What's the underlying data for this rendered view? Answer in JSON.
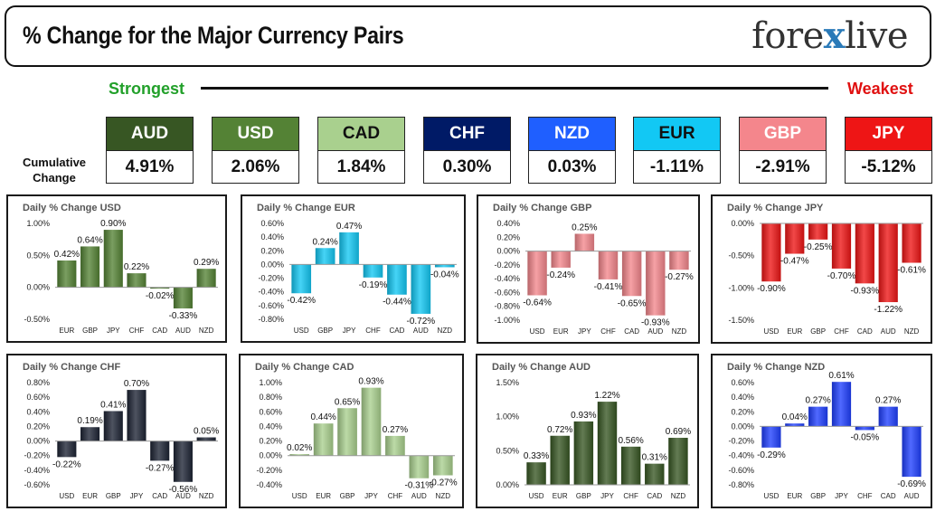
{
  "header": {
    "title": "% Change for the Major Currency Pairs",
    "logo_pre": "fore",
    "logo_x": "x",
    "logo_post": "live"
  },
  "scale": {
    "strongest": "Strongest",
    "weakest": "Weakest"
  },
  "cumulative": {
    "label_line1": "Cumulative",
    "label_line2": "Change",
    "items": [
      {
        "code": "AUD",
        "value": "4.91%",
        "bg": "#375623",
        "fg": "#ffffff"
      },
      {
        "code": "USD",
        "value": "2.06%",
        "bg": "#548235",
        "fg": "#ffffff"
      },
      {
        "code": "CAD",
        "value": "1.84%",
        "bg": "#a9d08e",
        "fg": "#111111"
      },
      {
        "code": "CHF",
        "value": "0.30%",
        "bg": "#001a66",
        "fg": "#ffffff"
      },
      {
        "code": "NZD",
        "value": "0.03%",
        "bg": "#1f5fff",
        "fg": "#ffffff"
      },
      {
        "code": "EUR",
        "value": "-1.11%",
        "bg": "#12c8f4",
        "fg": "#111111"
      },
      {
        "code": "GBP",
        "value": "-2.91%",
        "bg": "#f4868c",
        "fg": "#ffffff"
      },
      {
        "code": "JPY",
        "value": "-5.12%",
        "bg": "#ee1515",
        "fg": "#ffffff"
      }
    ]
  },
  "chart_data": [
    {
      "type": "bar",
      "title": "Daily % Change USD",
      "categories": [
        "EUR",
        "GBP",
        "JPY",
        "CHF",
        "CAD",
        "AUD",
        "NZD"
      ],
      "values": [
        0.42,
        0.64,
        0.9,
        0.22,
        -0.02,
        -0.33,
        0.29
      ],
      "labels": [
        "0.42%",
        "0.64%",
        "0.90%",
        "0.22%",
        "-0.02%",
        "-0.33%",
        "0.29%"
      ],
      "ylim": [
        -0.5,
        1.0
      ],
      "ticks": [
        1.0,
        0.5,
        0.0,
        -0.5
      ],
      "tick_labels": [
        "1.00%",
        "0.50%",
        "0.00%",
        "-0.50%"
      ],
      "color": "#548235"
    },
    {
      "type": "bar",
      "title": "Daily % Change EUR",
      "categories": [
        "USD",
        "GBP",
        "JPY",
        "CHF",
        "CAD",
        "AUD",
        "NZD"
      ],
      "values": [
        -0.42,
        0.24,
        0.47,
        -0.19,
        -0.44,
        -0.72,
        -0.04
      ],
      "labels": [
        "-0.42%",
        "0.24%",
        "0.47%",
        "-0.19%",
        "-0.44%",
        "-0.72%",
        "-0.04%"
      ],
      "ylim": [
        -0.8,
        0.6
      ],
      "ticks": [
        0.6,
        0.4,
        0.2,
        0.0,
        -0.2,
        -0.4,
        -0.6,
        -0.8
      ],
      "tick_labels": [
        "0.60%",
        "0.40%",
        "0.20%",
        "0.00%",
        "-0.20%",
        "-0.40%",
        "-0.60%",
        "-0.80%"
      ],
      "color": "#12c8f4"
    },
    {
      "type": "bar",
      "title": "Daily % Change GBP",
      "categories": [
        "USD",
        "EUR",
        "JPY",
        "CHF",
        "CAD",
        "AUD",
        "NZD"
      ],
      "values": [
        -0.64,
        -0.24,
        0.25,
        -0.41,
        -0.65,
        -0.93,
        -0.27
      ],
      "labels": [
        "-0.64%",
        "-0.24%",
        "0.25%",
        "-0.41%",
        "-0.65%",
        "-0.93%",
        "-0.27%"
      ],
      "ylim": [
        -1.0,
        0.4
      ],
      "ticks": [
        0.4,
        0.2,
        0.0,
        -0.2,
        -0.4,
        -0.6,
        -0.8,
        -1.0
      ],
      "tick_labels": [
        "0.40%",
        "0.20%",
        "0.00%",
        "-0.20%",
        "-0.40%",
        "-0.60%",
        "-0.80%",
        "-1.00%"
      ],
      "color": "#f4868c"
    },
    {
      "type": "bar",
      "title": "Daily % Change JPY",
      "categories": [
        "USD",
        "EUR",
        "GBP",
        "CHF",
        "CAD",
        "AUD",
        "NZD"
      ],
      "values": [
        -0.9,
        -0.47,
        -0.25,
        -0.7,
        -0.93,
        -1.22,
        -0.61
      ],
      "labels": [
        "-0.90%",
        "-0.47%",
        "-0.25%",
        "-0.70%",
        "-0.93%",
        "-1.22%",
        "-0.61%"
      ],
      "ylim": [
        -1.5,
        0.0
      ],
      "ticks": [
        0.0,
        -0.5,
        -1.0,
        -1.5
      ],
      "tick_labels": [
        "0.00%",
        "-0.50%",
        "-1.00%",
        "-1.50%"
      ],
      "color": "#ee1515"
    },
    {
      "type": "bar",
      "title": "Daily % Change CHF",
      "categories": [
        "USD",
        "EUR",
        "GBP",
        "JPY",
        "CAD",
        "AUD",
        "NZD"
      ],
      "values": [
        -0.22,
        0.19,
        0.41,
        0.7,
        -0.27,
        -0.56,
        0.05
      ],
      "labels": [
        "-0.22%",
        "0.19%",
        "0.41%",
        "0.70%",
        "-0.27%",
        "-0.56%",
        "0.05%"
      ],
      "ylim": [
        -0.6,
        0.8
      ],
      "ticks": [
        0.8,
        0.6,
        0.4,
        0.2,
        0.0,
        -0.2,
        -0.4,
        -0.6
      ],
      "tick_labels": [
        "0.80%",
        "0.60%",
        "0.40%",
        "0.20%",
        "0.00%",
        "-0.20%",
        "-0.40%",
        "-0.60%"
      ],
      "color": "#1c2333"
    },
    {
      "type": "bar",
      "title": "Daily % Change CAD",
      "categories": [
        "USD",
        "EUR",
        "GBP",
        "JPY",
        "CHF",
        "AUD",
        "NZD"
      ],
      "values": [
        0.02,
        0.44,
        0.65,
        0.93,
        0.27,
        -0.31,
        -0.27
      ],
      "labels": [
        "0.02%",
        "0.44%",
        "0.65%",
        "0.93%",
        "0.27%",
        "-0.31%",
        "-0.27%"
      ],
      "ylim": [
        -0.4,
        1.0
      ],
      "ticks": [
        1.0,
        0.8,
        0.6,
        0.4,
        0.2,
        0.0,
        -0.2,
        -0.4
      ],
      "tick_labels": [
        "1.00%",
        "0.80%",
        "0.60%",
        "0.40%",
        "0.20%",
        "0.00%",
        "-0.20%",
        "-0.40%"
      ],
      "color": "#a9d08e"
    },
    {
      "type": "bar",
      "title": "Daily % Change AUD",
      "categories": [
        "USD",
        "EUR",
        "GBP",
        "JPY",
        "CHF",
        "CAD",
        "NZD"
      ],
      "values": [
        0.33,
        0.72,
        0.93,
        1.22,
        0.56,
        0.31,
        0.69
      ],
      "labels": [
        "0.33%",
        "0.72%",
        "0.93%",
        "1.22%",
        "0.56%",
        "0.31%",
        "0.69%"
      ],
      "ylim": [
        0.0,
        1.5
      ],
      "ticks": [
        1.5,
        1.0,
        0.5,
        0.0
      ],
      "tick_labels": [
        "1.50%",
        "1.00%",
        "0.50%",
        "0.00%"
      ],
      "color": "#375623"
    },
    {
      "type": "bar",
      "title": "Daily % Change NZD",
      "categories": [
        "USD",
        "EUR",
        "GBP",
        "JPY",
        "CHF",
        "CAD",
        "AUD"
      ],
      "values": [
        -0.29,
        0.04,
        0.27,
        0.61,
        -0.05,
        0.27,
        -0.69
      ],
      "labels": [
        "-0.29%",
        "0.04%",
        "0.27%",
        "0.61%",
        "-0.05%",
        "0.27%",
        "-0.69%"
      ],
      "ylim": [
        -0.8,
        0.6
      ],
      "ticks": [
        0.6,
        0.4,
        0.2,
        0.0,
        -0.2,
        -0.4,
        -0.6,
        -0.8
      ],
      "tick_labels": [
        "0.60%",
        "0.40%",
        "0.20%",
        "0.00%",
        "-0.20%",
        "-0.40%",
        "-0.60%",
        "-0.80%"
      ],
      "color": "#1f3fff"
    }
  ]
}
